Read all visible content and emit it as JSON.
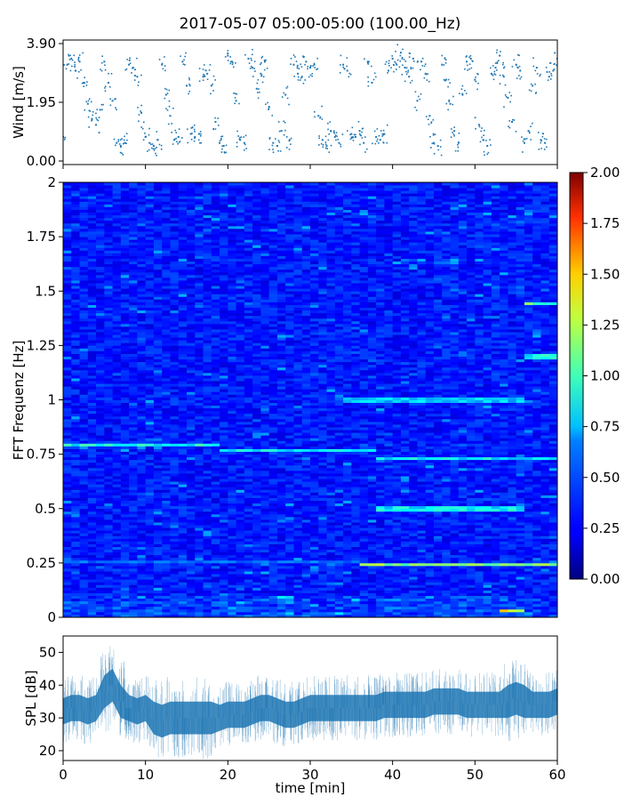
{
  "title": "2017-05-07 05:00-05:00 (100.00_Hz)",
  "chart_data": [
    {
      "type": "scatter",
      "panel": "wind",
      "ylabel": "Wind [m/s]",
      "xlim": [
        0,
        60
      ],
      "ylim": [
        0,
        3.9
      ],
      "yticks": [
        "0.00",
        "1.95",
        "3.90"
      ],
      "series": [
        {
          "color": "#1f77b4",
          "x": [
            0.0,
            0.5,
            1.0,
            1.5,
            2.0,
            2.5,
            3.0,
            3.5,
            4.0,
            4.5,
            5.0,
            5.5,
            6.0,
            6.5,
            7.0,
            7.5,
            8.0,
            8.5,
            9.0,
            9.5,
            10.0,
            10.5,
            11.0,
            11.5,
            12.0,
            12.5,
            13.0,
            13.5,
            14.0,
            14.5,
            15.0,
            15.5,
            16.0,
            16.5,
            17.0,
            17.5,
            18.0,
            18.5,
            19.0,
            19.5,
            20.0,
            20.5,
            21.0,
            21.5,
            22.0,
            22.5,
            23.0,
            23.5,
            24.0,
            24.5,
            25.0,
            25.5,
            26.0,
            26.5,
            27.0,
            27.5,
            28.0,
            28.5,
            29.0,
            29.5,
            30.0,
            30.5,
            31.0,
            31.5,
            32.0,
            32.5,
            33.0,
            33.5,
            34.0,
            34.5,
            35.0,
            35.5,
            36.0,
            36.5,
            37.0,
            37.5,
            38.0,
            38.5,
            39.0,
            39.5,
            40.0,
            40.5,
            41.0,
            41.5,
            42.0,
            42.5,
            43.0,
            43.5,
            44.0,
            44.5,
            45.0,
            45.5,
            46.0,
            46.5,
            47.0,
            47.5,
            48.0,
            48.5,
            49.0,
            49.5,
            50.0,
            50.5,
            51.0,
            51.5,
            52.0,
            52.5,
            53.0,
            53.5,
            54.0,
            54.5,
            55.0,
            55.5,
            56.0,
            56.5,
            57.0,
            57.5,
            58.0,
            58.5,
            59.0,
            59.5,
            60.0
          ],
          "y": [
            0.8,
            3.2,
            3.4,
            3.0,
            3.3,
            2.6,
            1.9,
            1.4,
            1.2,
            1.7,
            3.3,
            2.6,
            2.0,
            0.6,
            0.5,
            0.6,
            3.2,
            3.1,
            2.8,
            1.6,
            0.8,
            0.6,
            0.5,
            0.7,
            3.2,
            2.2,
            1.5,
            0.7,
            0.8,
            3.3,
            2.5,
            0.9,
            0.8,
            0.9,
            2.8,
            2.9,
            2.5,
            1.3,
            0.6,
            0.5,
            3.5,
            3.3,
            2.0,
            0.7,
            0.6,
            3.4,
            3.1,
            2.4,
            2.9,
            3.3,
            1.8,
            0.6,
            0.5,
            1.0,
            2.2,
            0.7,
            3.2,
            2.9,
            2.8,
            3.3,
            3.1,
            3.2,
            1.5,
            0.7,
            0.5,
            1.0,
            0.8,
            0.6,
            3.2,
            3.0,
            0.9,
            0.8,
            1.0,
            0.6,
            3.3,
            2.6,
            0.8,
            0.7,
            0.9,
            3.0,
            3.4,
            3.2,
            3.6,
            3.1,
            2.8,
            3.4,
            2.0,
            3.3,
            2.9,
            1.5,
            0.6,
            0.5,
            3.2,
            2.7,
            1.9,
            1.0,
            0.6,
            2.2,
            3.3,
            3.4,
            2.7,
            1.2,
            0.7,
            0.5,
            2.9,
            3.1,
            3.5,
            2.8,
            2.1,
            1.3,
            3.2,
            3.0,
            0.6,
            1.0,
            2.5,
            3.1,
            0.7,
            0.6,
            2.8,
            3.0,
            3.4
          ]
        }
      ]
    },
    {
      "type": "heatmap",
      "panel": "spectrogram",
      "ylabel": "FFT Frequenz [Hz]",
      "xlim": [
        0,
        60
      ],
      "ylim": [
        0,
        2
      ],
      "yticks": [
        "0",
        "0.25",
        "0.5",
        "0.75",
        "1",
        "1.25",
        "1.5",
        "1.75",
        "2"
      ],
      "colorbar": {
        "min": 0,
        "max": 2.0,
        "ticks": [
          "0.00",
          "0.25",
          "0.50",
          "0.75",
          "1.00",
          "1.25",
          "1.50",
          "1.75",
          "2.00"
        ],
        "colormap": "jet"
      },
      "features": [
        {
          "f": 0.79,
          "from": 0,
          "to": 19,
          "level": 0.9
        },
        {
          "f": 0.77,
          "from": 19,
          "to": 38,
          "level": 0.85
        },
        {
          "f": 0.73,
          "from": 38,
          "to": 60,
          "level": 0.85
        },
        {
          "f": 0.5,
          "from": 38,
          "to": 56,
          "level": 0.85
        },
        {
          "f": 0.24,
          "from": 36,
          "to": 60,
          "level": 1.2
        },
        {
          "f": 0.26,
          "from": 0,
          "to": 36,
          "level": 0.55
        },
        {
          "f": 1.0,
          "from": 34,
          "to": 56,
          "level": 0.75
        },
        {
          "f": 1.44,
          "from": 56,
          "to": 60,
          "level": 1.1
        },
        {
          "f": 1.2,
          "from": 56,
          "to": 60,
          "level": 0.9
        },
        {
          "f": 0.03,
          "from": 53.5,
          "to": 56,
          "level": 1.5
        }
      ]
    },
    {
      "type": "line",
      "panel": "spl",
      "xlabel": "time [min]",
      "ylabel": "SPL [dB]",
      "xlim": [
        0,
        60
      ],
      "ylim": [
        17,
        55
      ],
      "xticks": [
        "0",
        "10",
        "20",
        "30",
        "40",
        "50",
        "60"
      ],
      "yticks": [
        "20",
        "30",
        "40",
        "50"
      ],
      "series": [
        {
          "color": "#1f77b4",
          "x": [
            0,
            1,
            2,
            3,
            4,
            5,
            6,
            7,
            8,
            9,
            10,
            11,
            12,
            13,
            14,
            15,
            16,
            17,
            18,
            19,
            20,
            21,
            22,
            23,
            24,
            25,
            26,
            27,
            28,
            29,
            30,
            31,
            32,
            33,
            34,
            35,
            36,
            37,
            38,
            39,
            40,
            41,
            42,
            43,
            44,
            45,
            46,
            47,
            48,
            49,
            50,
            51,
            52,
            53,
            54,
            55,
            56,
            57,
            58,
            59,
            60
          ],
          "mean": [
            32,
            33,
            33,
            32,
            33,
            38,
            40,
            35,
            33,
            32,
            33,
            30,
            29,
            30,
            30,
            30,
            30,
            30,
            30,
            30,
            31,
            31,
            31,
            32,
            33,
            33,
            32,
            31,
            31,
            32,
            33,
            33,
            33,
            33,
            33,
            33,
            33,
            33,
            33,
            34,
            34,
            34,
            34,
            34,
            34,
            35,
            35,
            35,
            35,
            34,
            34,
            34,
            34,
            34,
            35,
            36,
            35,
            34,
            34,
            34,
            35
          ],
          "spread": [
            4,
            4,
            4,
            4,
            4,
            5,
            5,
            5,
            4,
            4,
            4,
            5,
            5,
            5,
            5,
            5,
            5,
            5,
            5,
            4,
            4,
            4,
            4,
            4,
            4,
            4,
            4,
            4,
            4,
            4,
            4,
            4,
            4,
            4,
            4,
            4,
            4,
            4,
            4,
            4,
            4,
            4,
            4,
            4,
            4,
            4,
            4,
            4,
            4,
            4,
            4,
            4,
            4,
            4,
            5,
            5,
            5,
            4,
            4,
            4,
            4
          ]
        }
      ]
    }
  ]
}
